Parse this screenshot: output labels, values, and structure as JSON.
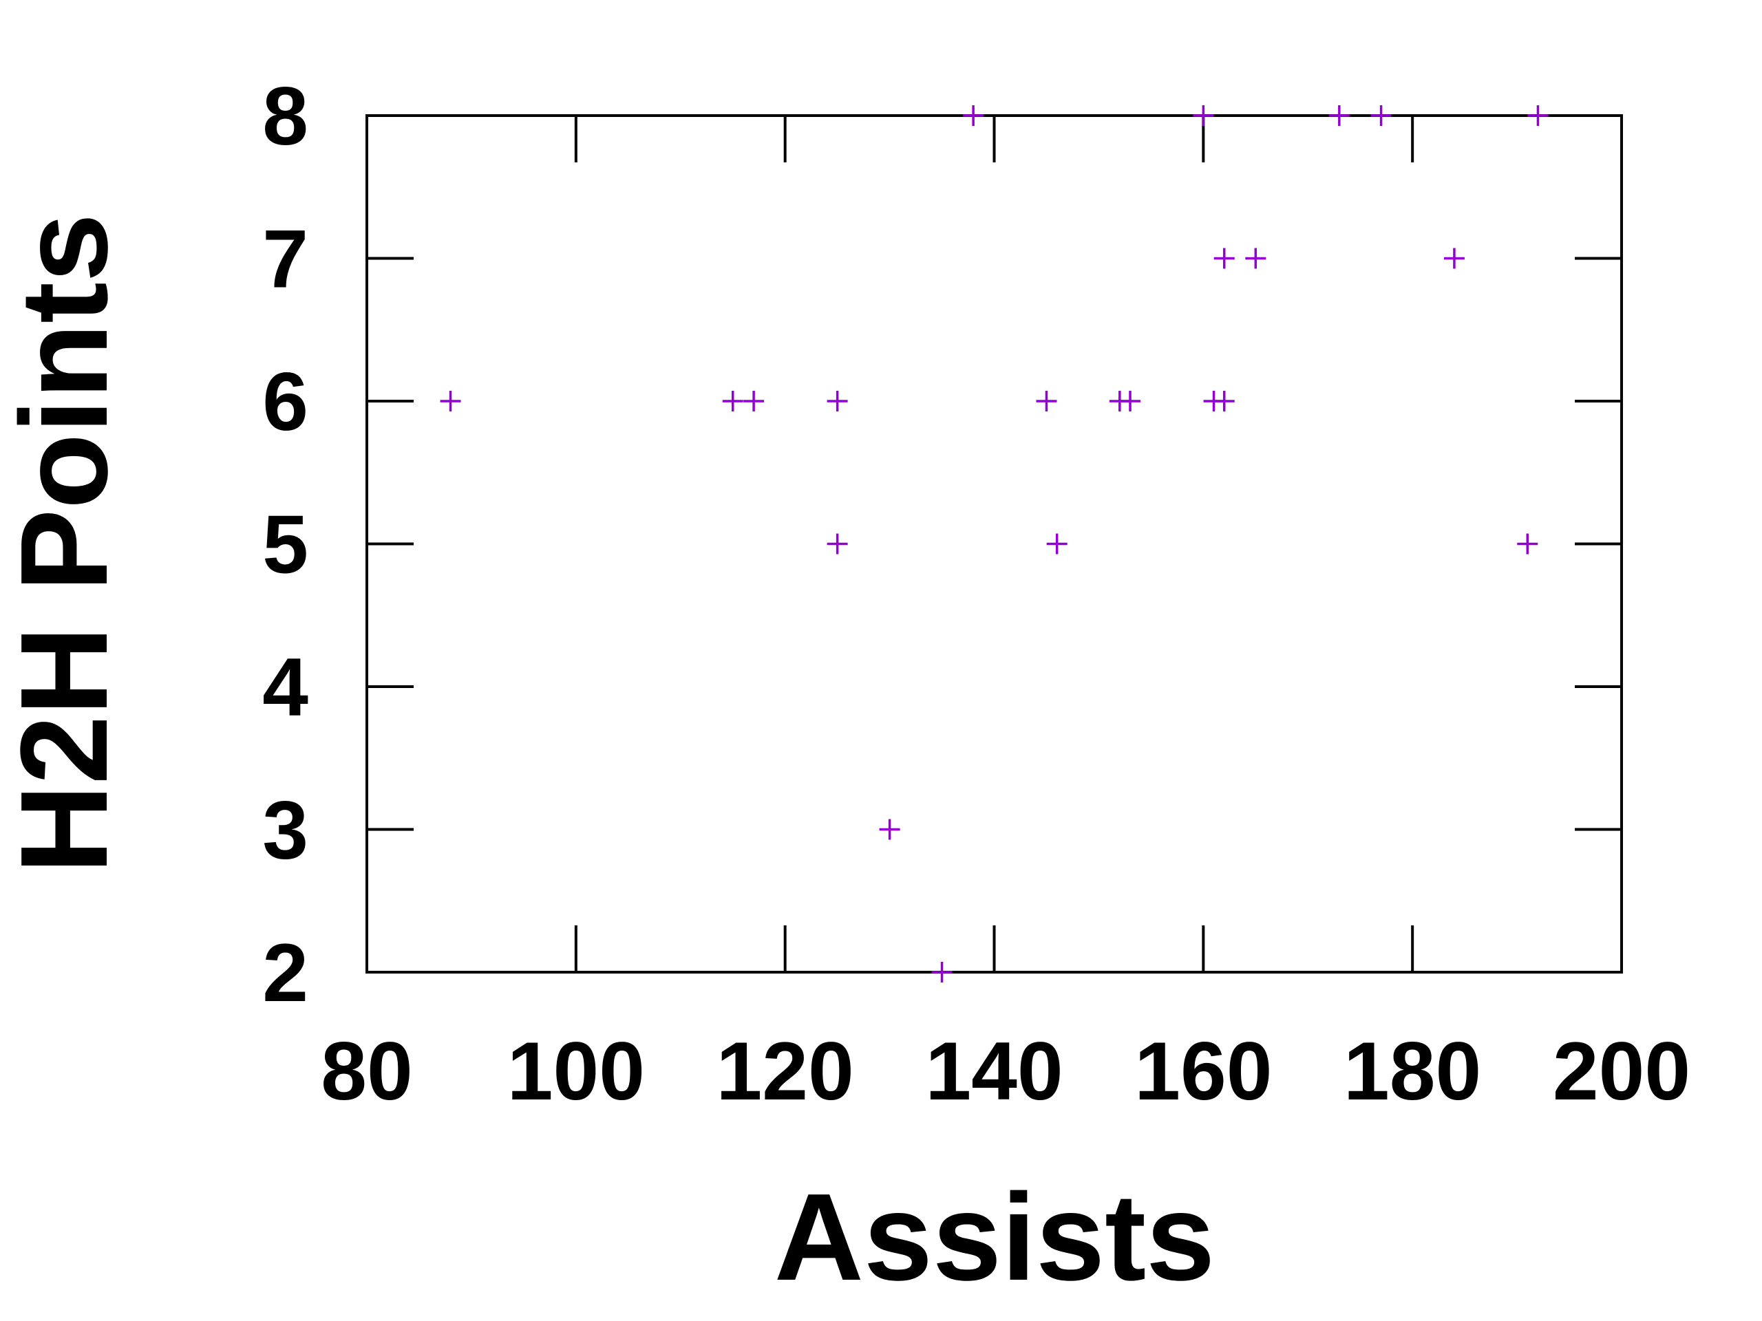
{
  "chart_data": {
    "type": "scatter",
    "title": "",
    "xlabel": "Assists",
    "ylabel": "H2H Points",
    "xlim": [
      80,
      200
    ],
    "ylim": [
      2,
      8
    ],
    "xticks": [
      80,
      100,
      120,
      140,
      160,
      180,
      200
    ],
    "yticks": [
      2,
      3,
      4,
      5,
      6,
      7,
      8
    ],
    "grid": false,
    "legend": "none",
    "marker": "plus",
    "color": "#9400d3",
    "series": [
      {
        "points": [
          [
            88,
            6
          ],
          [
            115,
            6
          ],
          [
            117,
            6
          ],
          [
            125,
            6
          ],
          [
            125,
            5
          ],
          [
            130,
            3
          ],
          [
            135,
            2
          ],
          [
            138,
            8
          ],
          [
            145,
            6
          ],
          [
            146,
            5
          ],
          [
            152,
            6
          ],
          [
            153,
            6
          ],
          [
            160,
            8
          ],
          [
            161,
            6
          ],
          [
            162,
            6
          ],
          [
            162,
            7
          ],
          [
            165,
            7
          ],
          [
            173,
            8
          ],
          [
            177,
            8
          ],
          [
            184,
            7
          ],
          [
            191,
            5
          ],
          [
            192,
            8
          ]
        ]
      }
    ]
  }
}
